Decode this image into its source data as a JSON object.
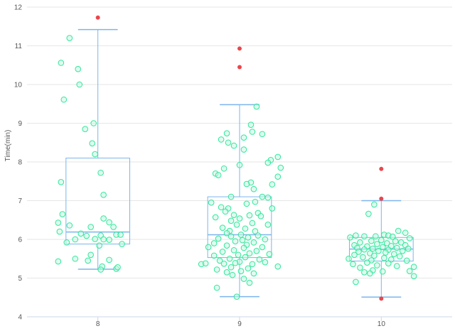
{
  "chart_data": {
    "type": "boxplot",
    "ylabel": "Time(min)",
    "xlabel": "",
    "ylim": [
      4,
      12
    ],
    "yticks": [
      4,
      5,
      6,
      7,
      8,
      9,
      10,
      11,
      12
    ],
    "categories": [
      "8",
      "9",
      "10"
    ],
    "grid": "horizontal",
    "colors": {
      "box": "#7cb5ec",
      "point_stroke": "#2ee89a",
      "point_fill": "#c9f7e3",
      "outlier": "#e8474c",
      "grid": "#e6e6e6",
      "axis": "#ccd6eb"
    },
    "boxes": [
      {
        "category": "8",
        "low": 5.23,
        "q1": 5.88,
        "median": 6.19,
        "q3": 8.1,
        "high": 11.42,
        "outliers": [
          11.73
        ]
      },
      {
        "category": "9",
        "low": 4.52,
        "q1": 5.53,
        "median": 6.12,
        "q3": 7.1,
        "high": 9.48,
        "outliers": [
          10.93,
          10.45
        ]
      },
      {
        "category": "10",
        "low": 4.51,
        "q1": 5.44,
        "median": 5.75,
        "q3": 6.05,
        "high": 7.0,
        "outliers": [
          7.82,
          7.05,
          4.47
        ]
      }
    ],
    "points": [
      {
        "category": "8",
        "x": -0.2,
        "y": 11.2
      },
      {
        "category": "8",
        "x": -0.26,
        "y": 10.56
      },
      {
        "category": "8",
        "x": -0.14,
        "y": 10.4
      },
      {
        "category": "8",
        "x": -0.13,
        "y": 10.0
      },
      {
        "category": "8",
        "x": -0.24,
        "y": 9.61
      },
      {
        "category": "8",
        "x": -0.03,
        "y": 9.0
      },
      {
        "category": "8",
        "x": -0.09,
        "y": 8.85
      },
      {
        "category": "8",
        "x": -0.04,
        "y": 8.48
      },
      {
        "category": "8",
        "x": -0.02,
        "y": 8.2
      },
      {
        "category": "8",
        "x": 0.02,
        "y": 7.72
      },
      {
        "category": "8",
        "x": -0.26,
        "y": 7.48
      },
      {
        "category": "8",
        "x": 0.04,
        "y": 7.15
      },
      {
        "category": "8",
        "x": -0.25,
        "y": 6.65
      },
      {
        "category": "8",
        "x": 0.04,
        "y": 6.54
      },
      {
        "category": "8",
        "x": -0.28,
        "y": 6.43
      },
      {
        "category": "8",
        "x": 0.08,
        "y": 6.44
      },
      {
        "category": "8",
        "x": -0.2,
        "y": 6.36
      },
      {
        "category": "8",
        "x": -0.05,
        "y": 6.32
      },
      {
        "category": "8",
        "x": 0.11,
        "y": 6.32
      },
      {
        "category": "8",
        "x": -0.27,
        "y": 6.2
      },
      {
        "category": "8",
        "x": -0.12,
        "y": 6.15
      },
      {
        "category": "8",
        "x": -0.08,
        "y": 6.09
      },
      {
        "category": "8",
        "x": 0.02,
        "y": 6.1
      },
      {
        "category": "8",
        "x": 0.13,
        "y": 6.12
      },
      {
        "category": "8",
        "x": -0.16,
        "y": 6.0
      },
      {
        "category": "8",
        "x": -0.02,
        "y": 6.01
      },
      {
        "category": "8",
        "x": 0.04,
        "y": 6.0
      },
      {
        "category": "8",
        "x": 0.08,
        "y": 5.99
      },
      {
        "category": "8",
        "x": 0.16,
        "y": 6.12
      },
      {
        "category": "8",
        "x": -0.22,
        "y": 5.92
      },
      {
        "category": "8",
        "x": 0.01,
        "y": 5.84
      },
      {
        "category": "8",
        "x": 0.17,
        "y": 5.88
      },
      {
        "category": "8",
        "x": -0.05,
        "y": 5.6
      },
      {
        "category": "8",
        "x": -0.16,
        "y": 5.5
      },
      {
        "category": "8",
        "x": -0.07,
        "y": 5.45
      },
      {
        "category": "8",
        "x": 0.08,
        "y": 5.47
      },
      {
        "category": "8",
        "x": -0.28,
        "y": 5.43
      },
      {
        "category": "8",
        "x": 0.03,
        "y": 5.3
      },
      {
        "category": "8",
        "x": 0.13,
        "y": 5.24
      },
      {
        "category": "8",
        "x": 0.14,
        "y": 5.28
      },
      {
        "category": "8",
        "x": 0.02,
        "y": 5.22
      },
      {
        "category": "9",
        "x": 0.12,
        "y": 9.43
      },
      {
        "category": "9",
        "x": 0.08,
        "y": 8.96
      },
      {
        "category": "9",
        "x": 0.09,
        "y": 8.78
      },
      {
        "category": "9",
        "x": -0.09,
        "y": 8.74
      },
      {
        "category": "9",
        "x": 0.16,
        "y": 8.72
      },
      {
        "category": "9",
        "x": 0.03,
        "y": 8.63
      },
      {
        "category": "9",
        "x": -0.13,
        "y": 8.58
      },
      {
        "category": "9",
        "x": -0.08,
        "y": 8.5
      },
      {
        "category": "9",
        "x": -0.04,
        "y": 8.42
      },
      {
        "category": "9",
        "x": 0.03,
        "y": 8.32
      },
      {
        "category": "9",
        "x": 0.27,
        "y": 8.13
      },
      {
        "category": "9",
        "x": 0.22,
        "y": 8.05
      },
      {
        "category": "9",
        "x": 0.2,
        "y": 7.98
      },
      {
        "category": "9",
        "x": 0.0,
        "y": 7.92
      },
      {
        "category": "9",
        "x": 0.29,
        "y": 7.85
      },
      {
        "category": "9",
        "x": -0.11,
        "y": 7.83
      },
      {
        "category": "9",
        "x": -0.17,
        "y": 7.7
      },
      {
        "category": "9",
        "x": -0.15,
        "y": 7.66
      },
      {
        "category": "9",
        "x": 0.27,
        "y": 7.62
      },
      {
        "category": "9",
        "x": 0.08,
        "y": 7.47
      },
      {
        "category": "9",
        "x": 0.23,
        "y": 7.42
      },
      {
        "category": "9",
        "x": 0.05,
        "y": 7.43
      },
      {
        "category": "9",
        "x": 0.1,
        "y": 7.3
      },
      {
        "category": "9",
        "x": 0.16,
        "y": 7.1
      },
      {
        "category": "9",
        "x": -0.06,
        "y": 7.1
      },
      {
        "category": "9",
        "x": 0.2,
        "y": 7.08
      },
      {
        "category": "9",
        "x": 0.11,
        "y": 6.97
      },
      {
        "category": "9",
        "x": -0.2,
        "y": 6.95
      },
      {
        "category": "9",
        "x": 0.05,
        "y": 6.92
      },
      {
        "category": "9",
        "x": -0.13,
        "y": 6.83
      },
      {
        "category": "9",
        "x": -0.08,
        "y": 6.8
      },
      {
        "category": "9",
        "x": 0.23,
        "y": 6.8
      },
      {
        "category": "9",
        "x": -0.1,
        "y": 6.72
      },
      {
        "category": "9",
        "x": 0.13,
        "y": 6.68
      },
      {
        "category": "9",
        "x": -0.04,
        "y": 6.63
      },
      {
        "category": "9",
        "x": 0.07,
        "y": 6.62
      },
      {
        "category": "9",
        "x": 0.15,
        "y": 6.6
      },
      {
        "category": "9",
        "x": -0.17,
        "y": 6.57
      },
      {
        "category": "9",
        "x": 0.0,
        "y": 6.54
      },
      {
        "category": "9",
        "x": -0.06,
        "y": 6.48
      },
      {
        "category": "9",
        "x": 0.09,
        "y": 6.42
      },
      {
        "category": "9",
        "x": -0.02,
        "y": 6.38
      },
      {
        "category": "9",
        "x": 0.2,
        "y": 6.38
      },
      {
        "category": "9",
        "x": -0.12,
        "y": 6.3
      },
      {
        "category": "9",
        "x": 0.04,
        "y": 6.28
      },
      {
        "category": "9",
        "x": -0.07,
        "y": 6.22
      },
      {
        "category": "9",
        "x": 0.11,
        "y": 6.21
      },
      {
        "category": "9",
        "x": -0.09,
        "y": 6.16
      },
      {
        "category": "9",
        "x": 0.01,
        "y": 6.12
      },
      {
        "category": "9",
        "x": -0.06,
        "y": 6.08
      },
      {
        "category": "9",
        "x": 0.13,
        "y": 6.1
      },
      {
        "category": "9",
        "x": 0.06,
        "y": 6.05
      },
      {
        "category": "9",
        "x": -0.15,
        "y": 6.02
      },
      {
        "category": "9",
        "x": 0.02,
        "y": 5.98
      },
      {
        "category": "9",
        "x": 0.18,
        "y": 6.0
      },
      {
        "category": "9",
        "x": -0.03,
        "y": 5.95
      },
      {
        "category": "9",
        "x": -0.18,
        "y": 5.9
      },
      {
        "category": "9",
        "x": 0.1,
        "y": 5.92
      },
      {
        "category": "9",
        "x": 0.05,
        "y": 5.86
      },
      {
        "category": "9",
        "x": -0.09,
        "y": 5.84
      },
      {
        "category": "9",
        "x": 0.16,
        "y": 5.8
      },
      {
        "category": "9",
        "x": -0.22,
        "y": 5.8
      },
      {
        "category": "9",
        "x": 0.03,
        "y": 5.78
      },
      {
        "category": "9",
        "x": -0.04,
        "y": 5.72
      },
      {
        "category": "9",
        "x": 0.12,
        "y": 5.7
      },
      {
        "category": "9",
        "x": -0.12,
        "y": 5.68
      },
      {
        "category": "9",
        "x": 0.07,
        "y": 5.64
      },
      {
        "category": "9",
        "x": -0.01,
        "y": 5.6
      },
      {
        "category": "9",
        "x": 0.21,
        "y": 5.62
      },
      {
        "category": "9",
        "x": -0.18,
        "y": 5.58
      },
      {
        "category": "9",
        "x": 0.04,
        "y": 5.54
      },
      {
        "category": "9",
        "x": -0.07,
        "y": 5.5
      },
      {
        "category": "9",
        "x": 0.14,
        "y": 5.48
      },
      {
        "category": "9",
        "x": -0.14,
        "y": 5.45
      },
      {
        "category": "9",
        "x": 0.0,
        "y": 5.42
      },
      {
        "category": "9",
        "x": 0.18,
        "y": 5.41
      },
      {
        "category": "9",
        "x": -0.03,
        "y": 5.39
      },
      {
        "category": "9",
        "x": -0.11,
        "y": 5.37
      },
      {
        "category": "9",
        "x": 0.09,
        "y": 5.36
      },
      {
        "category": "9",
        "x": -0.27,
        "y": 5.36
      },
      {
        "category": "9",
        "x": -0.24,
        "y": 5.38
      },
      {
        "category": "9",
        "x": 0.27,
        "y": 5.3
      },
      {
        "category": "9",
        "x": -0.06,
        "y": 5.28
      },
      {
        "category": "9",
        "x": 0.06,
        "y": 5.25
      },
      {
        "category": "9",
        "x": -0.16,
        "y": 5.22
      },
      {
        "category": "9",
        "x": 0.01,
        "y": 5.18
      },
      {
        "category": "9",
        "x": -0.09,
        "y": 5.15
      },
      {
        "category": "9",
        "x": 0.1,
        "y": 5.12
      },
      {
        "category": "9",
        "x": -0.05,
        "y": 5.08
      },
      {
        "category": "9",
        "x": 0.03,
        "y": 4.98
      },
      {
        "category": "9",
        "x": 0.07,
        "y": 4.88
      },
      {
        "category": "9",
        "x": -0.16,
        "y": 4.75
      },
      {
        "category": "9",
        "x": -0.02,
        "y": 4.52
      },
      {
        "category": "10",
        "x": -0.05,
        "y": 6.9
      },
      {
        "category": "10",
        "x": -0.09,
        "y": 6.66
      },
      {
        "category": "10",
        "x": 0.12,
        "y": 6.22
      },
      {
        "category": "10",
        "x": 0.17,
        "y": 6.17
      },
      {
        "category": "10",
        "x": 0.02,
        "y": 6.12
      },
      {
        "category": "10",
        "x": -0.18,
        "y": 6.1
      },
      {
        "category": "10",
        "x": 0.05,
        "y": 6.1
      },
      {
        "category": "10",
        "x": -0.04,
        "y": 6.08
      },
      {
        "category": "10",
        "x": -0.12,
        "y": 6.08
      },
      {
        "category": "10",
        "x": 0.08,
        "y": 6.07
      },
      {
        "category": "10",
        "x": -0.22,
        "y": 6.05
      },
      {
        "category": "10",
        "x": 0.2,
        "y": 6.03
      },
      {
        "category": "10",
        "x": 0.0,
        "y": 5.98
      },
      {
        "category": "10",
        "x": -0.07,
        "y": 5.96
      },
      {
        "category": "10",
        "x": 0.1,
        "y": 5.95
      },
      {
        "category": "10",
        "x": -0.15,
        "y": 5.92
      },
      {
        "category": "10",
        "x": 0.14,
        "y": 5.92
      },
      {
        "category": "10",
        "x": 0.04,
        "y": 5.9
      },
      {
        "category": "10",
        "x": -0.03,
        "y": 5.88
      },
      {
        "category": "10",
        "x": -0.19,
        "y": 5.85
      },
      {
        "category": "10",
        "x": 0.17,
        "y": 5.85
      },
      {
        "category": "10",
        "x": 0.07,
        "y": 5.83
      },
      {
        "category": "10",
        "x": -0.1,
        "y": 5.82
      },
      {
        "category": "10",
        "x": 0.01,
        "y": 5.8
      },
      {
        "category": "10",
        "x": -0.17,
        "y": 5.78
      },
      {
        "category": "10",
        "x": 0.11,
        "y": 5.78
      },
      {
        "category": "10",
        "x": -0.06,
        "y": 5.76
      },
      {
        "category": "10",
        "x": 0.19,
        "y": 5.76
      },
      {
        "category": "10",
        "x": -0.12,
        "y": 5.74
      },
      {
        "category": "10",
        "x": 0.05,
        "y": 5.73
      },
      {
        "category": "10",
        "x": -0.02,
        "y": 5.7
      },
      {
        "category": "10",
        "x": 0.15,
        "y": 5.7
      },
      {
        "category": "10",
        "x": -0.16,
        "y": 5.68
      },
      {
        "category": "10",
        "x": 0.03,
        "y": 5.66
      },
      {
        "category": "10",
        "x": -0.08,
        "y": 5.64
      },
      {
        "category": "10",
        "x": 0.09,
        "y": 5.62
      },
      {
        "category": "10",
        "x": -0.19,
        "y": 5.6
      },
      {
        "category": "10",
        "x": -0.05,
        "y": 5.58
      },
      {
        "category": "10",
        "x": 0.13,
        "y": 5.56
      },
      {
        "category": "10",
        "x": -0.13,
        "y": 5.54
      },
      {
        "category": "10",
        "x": 0.02,
        "y": 5.52
      },
      {
        "category": "10",
        "x": -0.23,
        "y": 5.5
      },
      {
        "category": "10",
        "x": 0.07,
        "y": 5.48
      },
      {
        "category": "10",
        "x": -0.07,
        "y": 5.46
      },
      {
        "category": "10",
        "x": 0.18,
        "y": 5.45
      },
      {
        "category": "10",
        "x": -0.1,
        "y": 5.4
      },
      {
        "category": "10",
        "x": 0.05,
        "y": 5.38
      },
      {
        "category": "10",
        "x": -0.2,
        "y": 5.36
      },
      {
        "category": "10",
        "x": -0.03,
        "y": 5.33
      },
      {
        "category": "10",
        "x": 0.11,
        "y": 5.31
      },
      {
        "category": "10",
        "x": 0.23,
        "y": 5.29
      },
      {
        "category": "10",
        "x": -0.15,
        "y": 5.27
      },
      {
        "category": "10",
        "x": -0.06,
        "y": 5.2
      },
      {
        "category": "10",
        "x": 0.01,
        "y": 5.17
      },
      {
        "category": "10",
        "x": -0.12,
        "y": 5.15
      },
      {
        "category": "10",
        "x": 0.2,
        "y": 5.18
      },
      {
        "category": "10",
        "x": -0.08,
        "y": 5.12
      },
      {
        "category": "10",
        "x": 0.23,
        "y": 5.05
      },
      {
        "category": "10",
        "x": -0.18,
        "y": 4.9
      }
    ]
  }
}
